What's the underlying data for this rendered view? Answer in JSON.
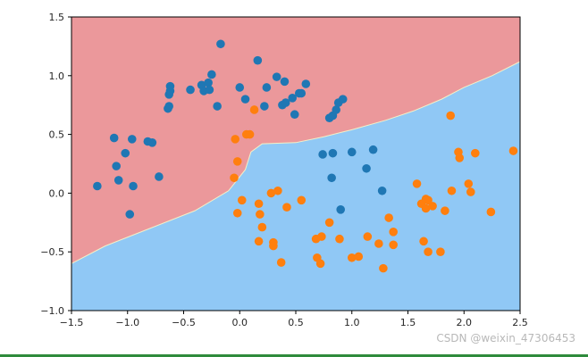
{
  "chart_data": {
    "type": "scatter",
    "title": "",
    "xlabel": "",
    "ylabel": "",
    "xlim": [
      -1.5,
      2.5
    ],
    "ylim": [
      -1.0,
      1.5
    ],
    "xticks": [
      -1.5,
      -1.0,
      -0.5,
      0.0,
      0.5,
      1.0,
      1.5,
      2.0,
      2.5
    ],
    "yticks": [
      -1.0,
      -0.5,
      0.0,
      0.5,
      1.0,
      1.5
    ],
    "xtick_labels": [
      "−1.5",
      "−1.0",
      "−0.5",
      "0.0",
      "0.5",
      "1.0",
      "1.5",
      "2.0",
      "2.5"
    ],
    "ytick_labels": [
      "−1.0",
      "−0.5",
      "0.0",
      "0.5",
      "1.0",
      "1.5"
    ],
    "grid": false,
    "decision_regions": {
      "class0_color": "#eb989b",
      "class1_color": "#90c8f5",
      "boundary": [
        [
          -1.5,
          -0.6
        ],
        [
          -1.2,
          -0.45
        ],
        [
          -0.8,
          -0.3
        ],
        [
          -0.4,
          -0.15
        ],
        [
          -0.1,
          0.02
        ],
        [
          0.05,
          0.2
        ],
        [
          0.1,
          0.35
        ],
        [
          0.2,
          0.42
        ],
        [
          0.5,
          0.43
        ],
        [
          0.75,
          0.48
        ],
        [
          1.0,
          0.54
        ],
        [
          1.3,
          0.62
        ],
        [
          1.55,
          0.7
        ],
        [
          1.8,
          0.8
        ],
        [
          2.0,
          0.9
        ],
        [
          2.25,
          1.0
        ],
        [
          2.5,
          1.12
        ]
      ]
    },
    "series": [
      {
        "color": "#1f77b4",
        "points": [
          [
            -1.27,
            0.06
          ],
          [
            -1.12,
            0.47
          ],
          [
            -1.1,
            0.23
          ],
          [
            -1.08,
            0.11
          ],
          [
            -1.02,
            0.34
          ],
          [
            -0.98,
            -0.18
          ],
          [
            -0.96,
            0.46
          ],
          [
            -0.95,
            0.06
          ],
          [
            -0.82,
            0.44
          ],
          [
            -0.78,
            0.43
          ],
          [
            -0.72,
            0.14
          ],
          [
            -0.64,
            0.72
          ],
          [
            -0.63,
            0.74
          ],
          [
            -0.63,
            0.84
          ],
          [
            -0.62,
            0.87
          ],
          [
            -0.62,
            0.91
          ],
          [
            -0.44,
            0.88
          ],
          [
            -0.34,
            0.92
          ],
          [
            -0.32,
            0.87
          ],
          [
            -0.28,
            0.94
          ],
          [
            -0.27,
            0.88
          ],
          [
            -0.25,
            1.01
          ],
          [
            -0.2,
            0.74
          ],
          [
            -0.17,
            1.27
          ],
          [
            0.0,
            0.9
          ],
          [
            0.05,
            0.8
          ],
          [
            0.16,
            1.13
          ],
          [
            0.22,
            0.74
          ],
          [
            0.24,
            0.9
          ],
          [
            0.33,
            0.99
          ],
          [
            0.38,
            0.75
          ],
          [
            0.4,
            0.95
          ],
          [
            0.41,
            0.77
          ],
          [
            0.47,
            0.81
          ],
          [
            0.49,
            0.67
          ],
          [
            0.53,
            0.85
          ],
          [
            0.55,
            0.85
          ],
          [
            0.59,
            0.93
          ],
          [
            0.74,
            0.33
          ],
          [
            0.8,
            0.64
          ],
          [
            0.83,
            0.66
          ],
          [
            0.86,
            0.71
          ],
          [
            0.88,
            0.77
          ],
          [
            0.83,
            0.34
          ],
          [
            0.92,
            0.8
          ],
          [
            0.82,
            0.13
          ],
          [
            0.9,
            -0.14
          ],
          [
            1.0,
            0.35
          ],
          [
            1.13,
            0.21
          ],
          [
            1.19,
            0.37
          ],
          [
            1.27,
            0.02
          ]
        ]
      },
      {
        "color": "#ff7f0e",
        "points": [
          [
            -0.05,
            0.13
          ],
          [
            -0.04,
            0.46
          ],
          [
            -0.02,
            -0.17
          ],
          [
            -0.02,
            0.27
          ],
          [
            0.02,
            -0.06
          ],
          [
            0.06,
            0.5
          ],
          [
            0.09,
            0.5
          ],
          [
            0.13,
            0.71
          ],
          [
            0.17,
            -0.09
          ],
          [
            0.17,
            -0.41
          ],
          [
            0.18,
            -0.18
          ],
          [
            0.2,
            -0.29
          ],
          [
            0.28,
            0.0
          ],
          [
            0.3,
            -0.42
          ],
          [
            0.3,
            -0.45
          ],
          [
            0.34,
            0.02
          ],
          [
            0.37,
            -0.59
          ],
          [
            0.42,
            -0.12
          ],
          [
            0.55,
            -0.06
          ],
          [
            0.68,
            -0.39
          ],
          [
            0.69,
            -0.55
          ],
          [
            0.72,
            -0.6
          ],
          [
            0.73,
            -0.37
          ],
          [
            0.8,
            -0.25
          ],
          [
            0.89,
            -0.39
          ],
          [
            1.0,
            -0.55
          ],
          [
            1.06,
            -0.54
          ],
          [
            1.14,
            -0.37
          ],
          [
            1.24,
            -0.43
          ],
          [
            1.28,
            -0.64
          ],
          [
            1.33,
            -0.21
          ],
          [
            1.37,
            -0.33
          ],
          [
            1.37,
            -0.44
          ],
          [
            1.58,
            0.08
          ],
          [
            1.62,
            -0.09
          ],
          [
            1.64,
            -0.41
          ],
          [
            1.66,
            -0.05
          ],
          [
            1.66,
            -0.13
          ],
          [
            1.68,
            -0.5
          ],
          [
            1.68,
            -0.06
          ],
          [
            1.72,
            -0.11
          ],
          [
            1.79,
            -0.5
          ],
          [
            1.83,
            -0.15
          ],
          [
            1.88,
            0.66
          ],
          [
            1.89,
            0.02
          ],
          [
            1.95,
            0.35
          ],
          [
            1.96,
            0.3
          ],
          [
            2.04,
            0.08
          ],
          [
            2.06,
            0.01
          ],
          [
            2.1,
            0.34
          ],
          [
            2.24,
            -0.16
          ],
          [
            2.44,
            0.36
          ]
        ]
      }
    ]
  },
  "watermark": "CSDN @weixin_47306453",
  "bottom_bar_color": "#2e8b3c"
}
